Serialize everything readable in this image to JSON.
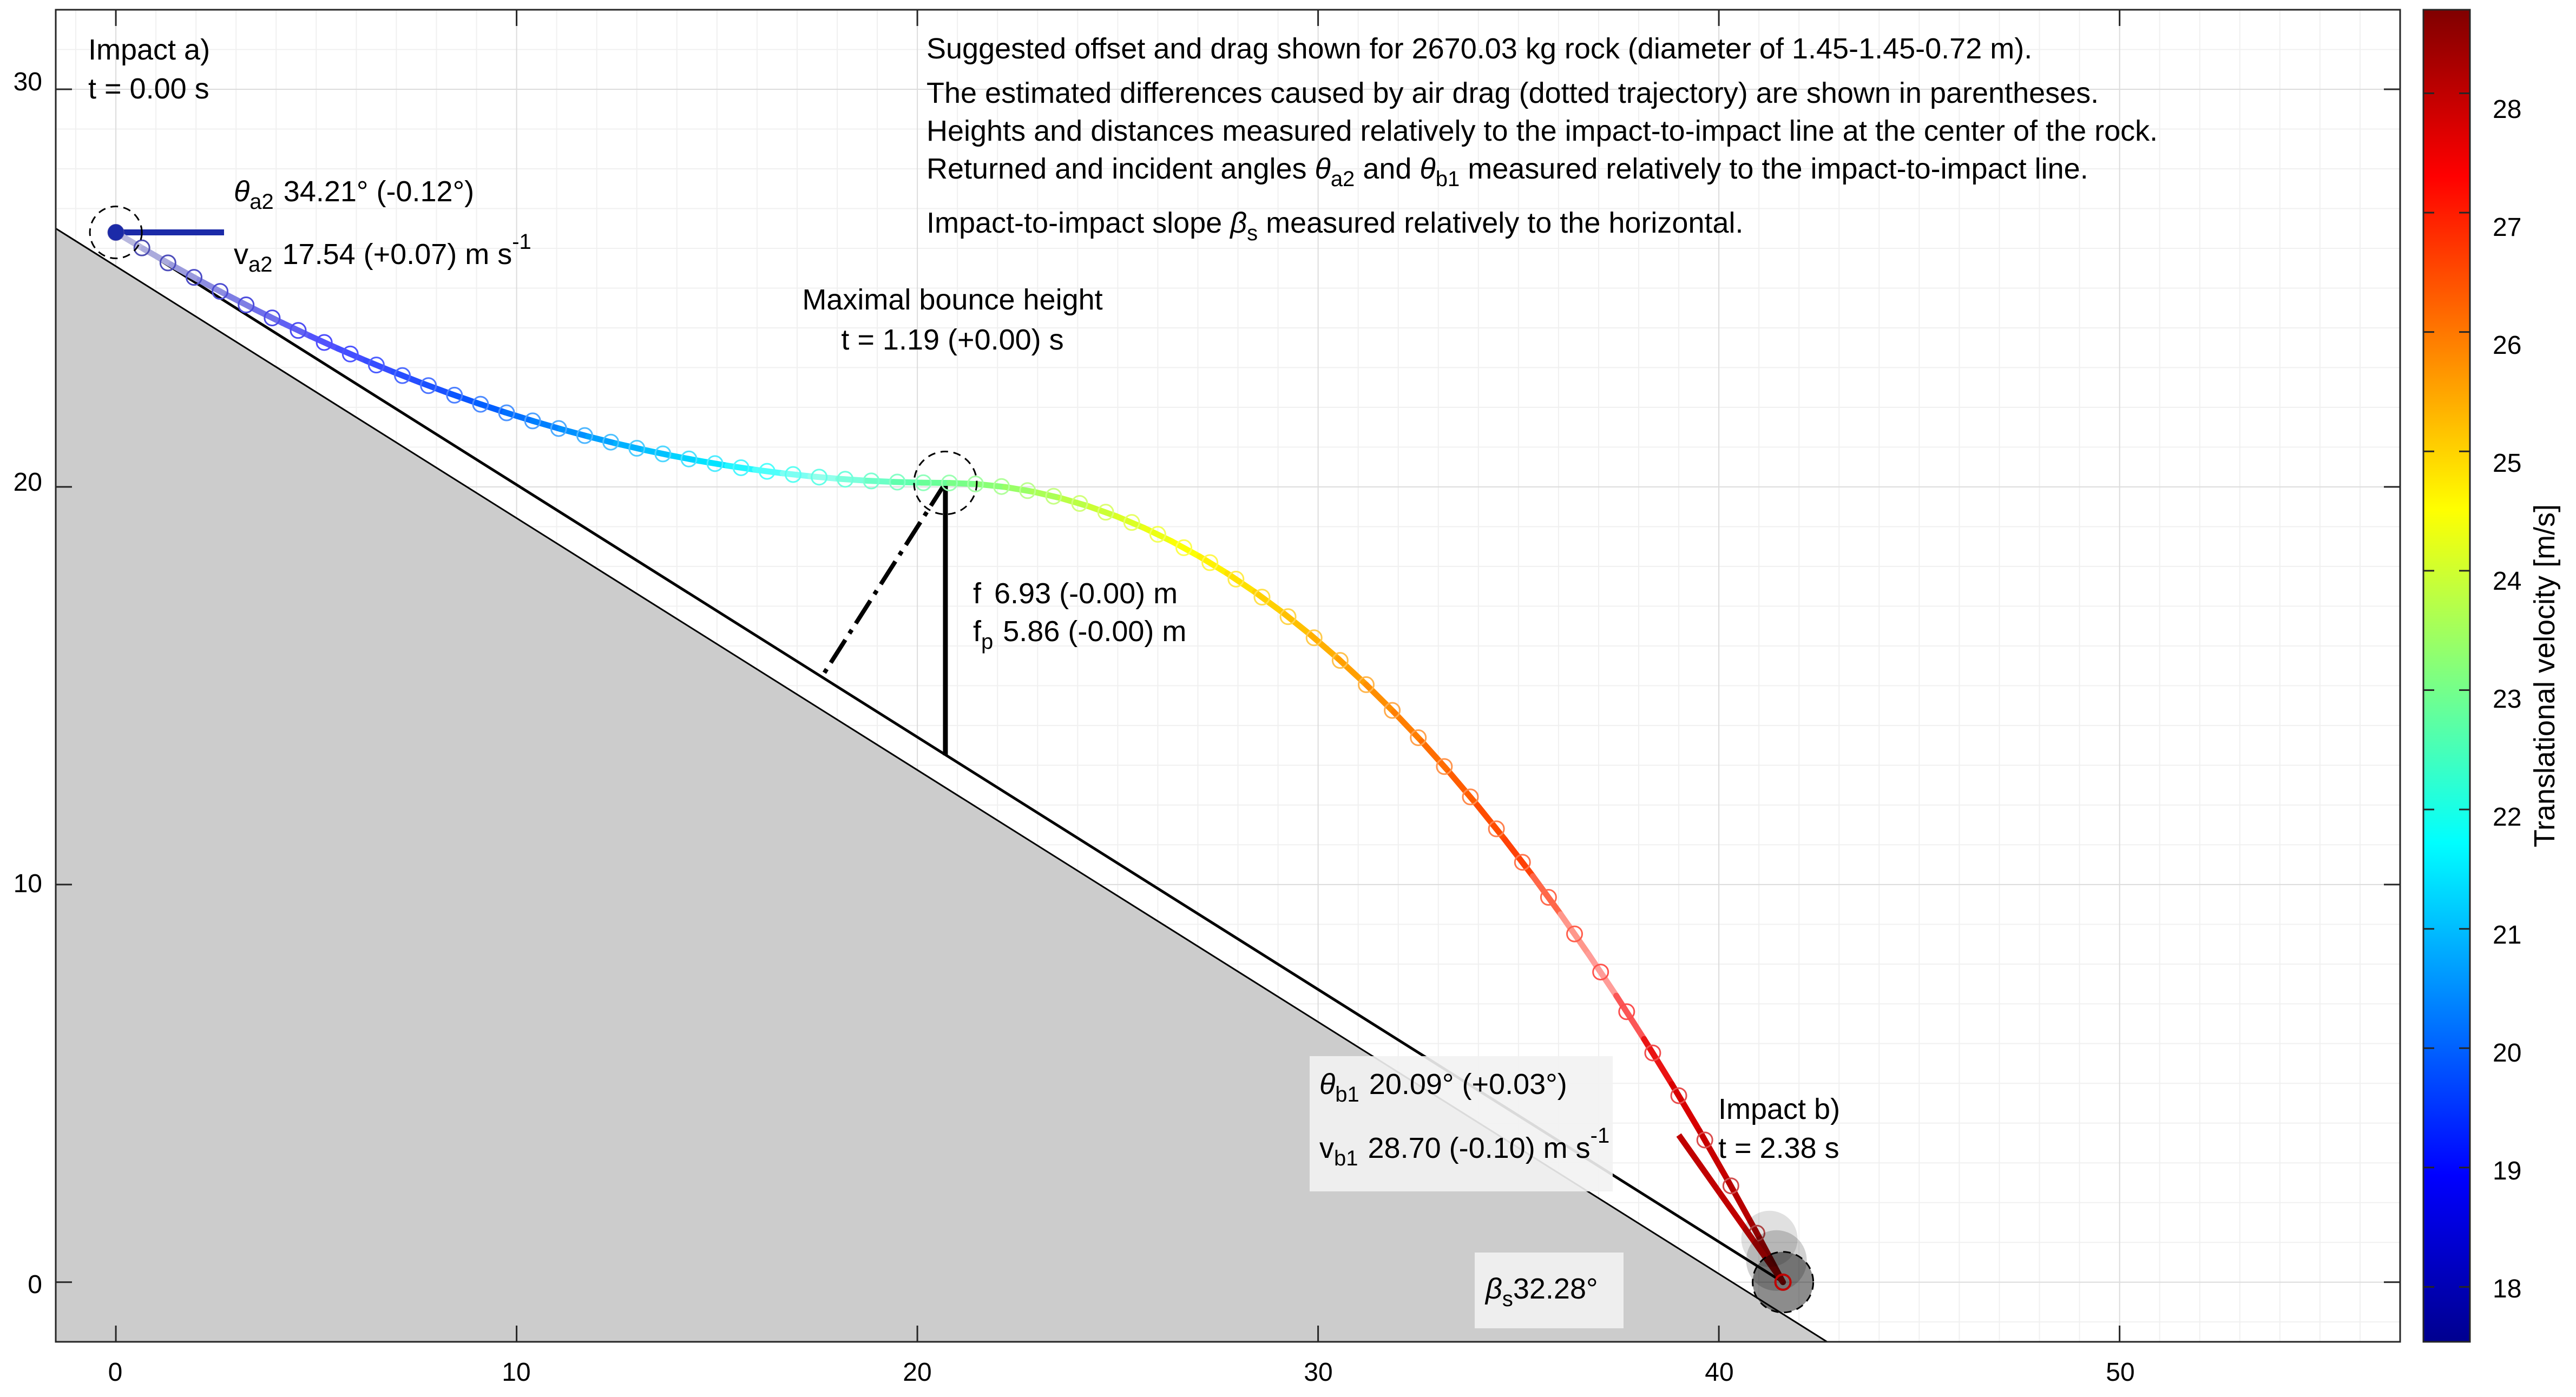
{
  "chart_data": {
    "type": "scatter",
    "title": "",
    "xlabel": "",
    "ylabel": "",
    "xlim": [
      -1.5,
      57
    ],
    "ylim": [
      -1.5,
      32
    ],
    "grid": "on (major and minor)",
    "x_ticks": [
      "0",
      "10",
      "20",
      "30",
      "40",
      "50"
    ],
    "y_ticks": [
      "0",
      "10",
      "20",
      "30"
    ],
    "colorbar": {
      "label": "Translational velocity [m/s]",
      "range": [
        17.54,
        28.7
      ],
      "ticks": [
        "18",
        "19",
        "20",
        "21",
        "22",
        "23",
        "24",
        "25",
        "26",
        "27",
        "28"
      ],
      "colormap": "jet"
    },
    "ground": {
      "color": "#cccccc",
      "points": [
        [
          -1.5,
          26.5
        ],
        [
          42.7,
          -1.5
        ]
      ]
    },
    "impact_line": {
      "from": [
        0,
        26.4
      ],
      "to": [
        41.6,
        0
      ]
    },
    "impact_a": {
      "x": 0,
      "y": 26.4
    },
    "impact_b": {
      "x": 41.6,
      "y": 0
    },
    "apex": {
      "x": 20.7,
      "y": 20.1
    },
    "f_foot": {
      "x": 20.7,
      "y": 13.25
    },
    "fp_foot": {
      "x": 17.6,
      "y": 15.2
    },
    "trajectory": {
      "t_end": 2.38,
      "v0": 17.54,
      "v1": 28.7,
      "start": [
        0,
        26.4
      ],
      "apex": [
        20.7,
        20.1
      ],
      "end": [
        41.6,
        0
      ],
      "marker_step": 0.035
    },
    "initial_segment": {
      "from": [
        0,
        26.4
      ],
      "to": [
        2.7,
        26.4
      ],
      "color": "#1b2aa8"
    },
    "final_segment": {
      "from": [
        39.0,
        3.7
      ],
      "to": [
        41.6,
        0
      ],
      "color": "#c00000"
    }
  },
  "annotations": {
    "impact_a_label": "Impact a)",
    "impact_a_time": "t = 0.00 s",
    "theta_a2_sym": "θ",
    "theta_a2_sub": "a2",
    "theta_a2_val": "34.21° (-0.12°)",
    "v_a2_sym": "v",
    "v_a2_sub": "a2",
    "v_a2_val": "17.54 (+0.07) m s",
    "v_a2_sup": "-1",
    "info_line1": "Suggested offset and drag shown for 2670.03 kg rock (diameter of 1.45-1.45-0.72 m).",
    "info_line2": "The estimated differences caused by air drag (dotted trajectory) are shown in parentheses.",
    "info_line3": "Heights and distances measured relatively to the impact-to-impact line at the center of the rock.",
    "info_line4_a": "Returned and incident angles ",
    "info_line4_t1": "θ",
    "info_line4_s1": "a2",
    "info_line4_and": " and ",
    "info_line4_t2": "θ",
    "info_line4_s2": "b1",
    "info_line4_b": " measured relatively to the impact-to-impact line.",
    "info_line5_a": "Impact-to-impact slope ",
    "info_line5_sym": "β",
    "info_line5_sub": "s",
    "info_line5_b": " measured relatively to the horizontal.",
    "apex_label": "Maximal bounce height",
    "apex_time": "t = 1.19 (+0.00) s",
    "f_sym": "f",
    "f_val": "6.93 (-0.00) m",
    "fp_sym": "f",
    "fp_sub": "p",
    "fp_val": "5.86 (-0.00) m",
    "theta_b1_sym": "θ",
    "theta_b1_sub": "b1",
    "theta_b1_val": "20.09° (+0.03°)",
    "v_b1_sym": "v",
    "v_b1_sub": "b1",
    "v_b1_val": "28.70 (-0.10) m s",
    "v_b1_sup": "-1",
    "impact_b_label": "Impact b)",
    "impact_b_time": "t = 2.38 s",
    "beta_sym": "β",
    "beta_sub": "s",
    "beta_val": "32.28°"
  }
}
